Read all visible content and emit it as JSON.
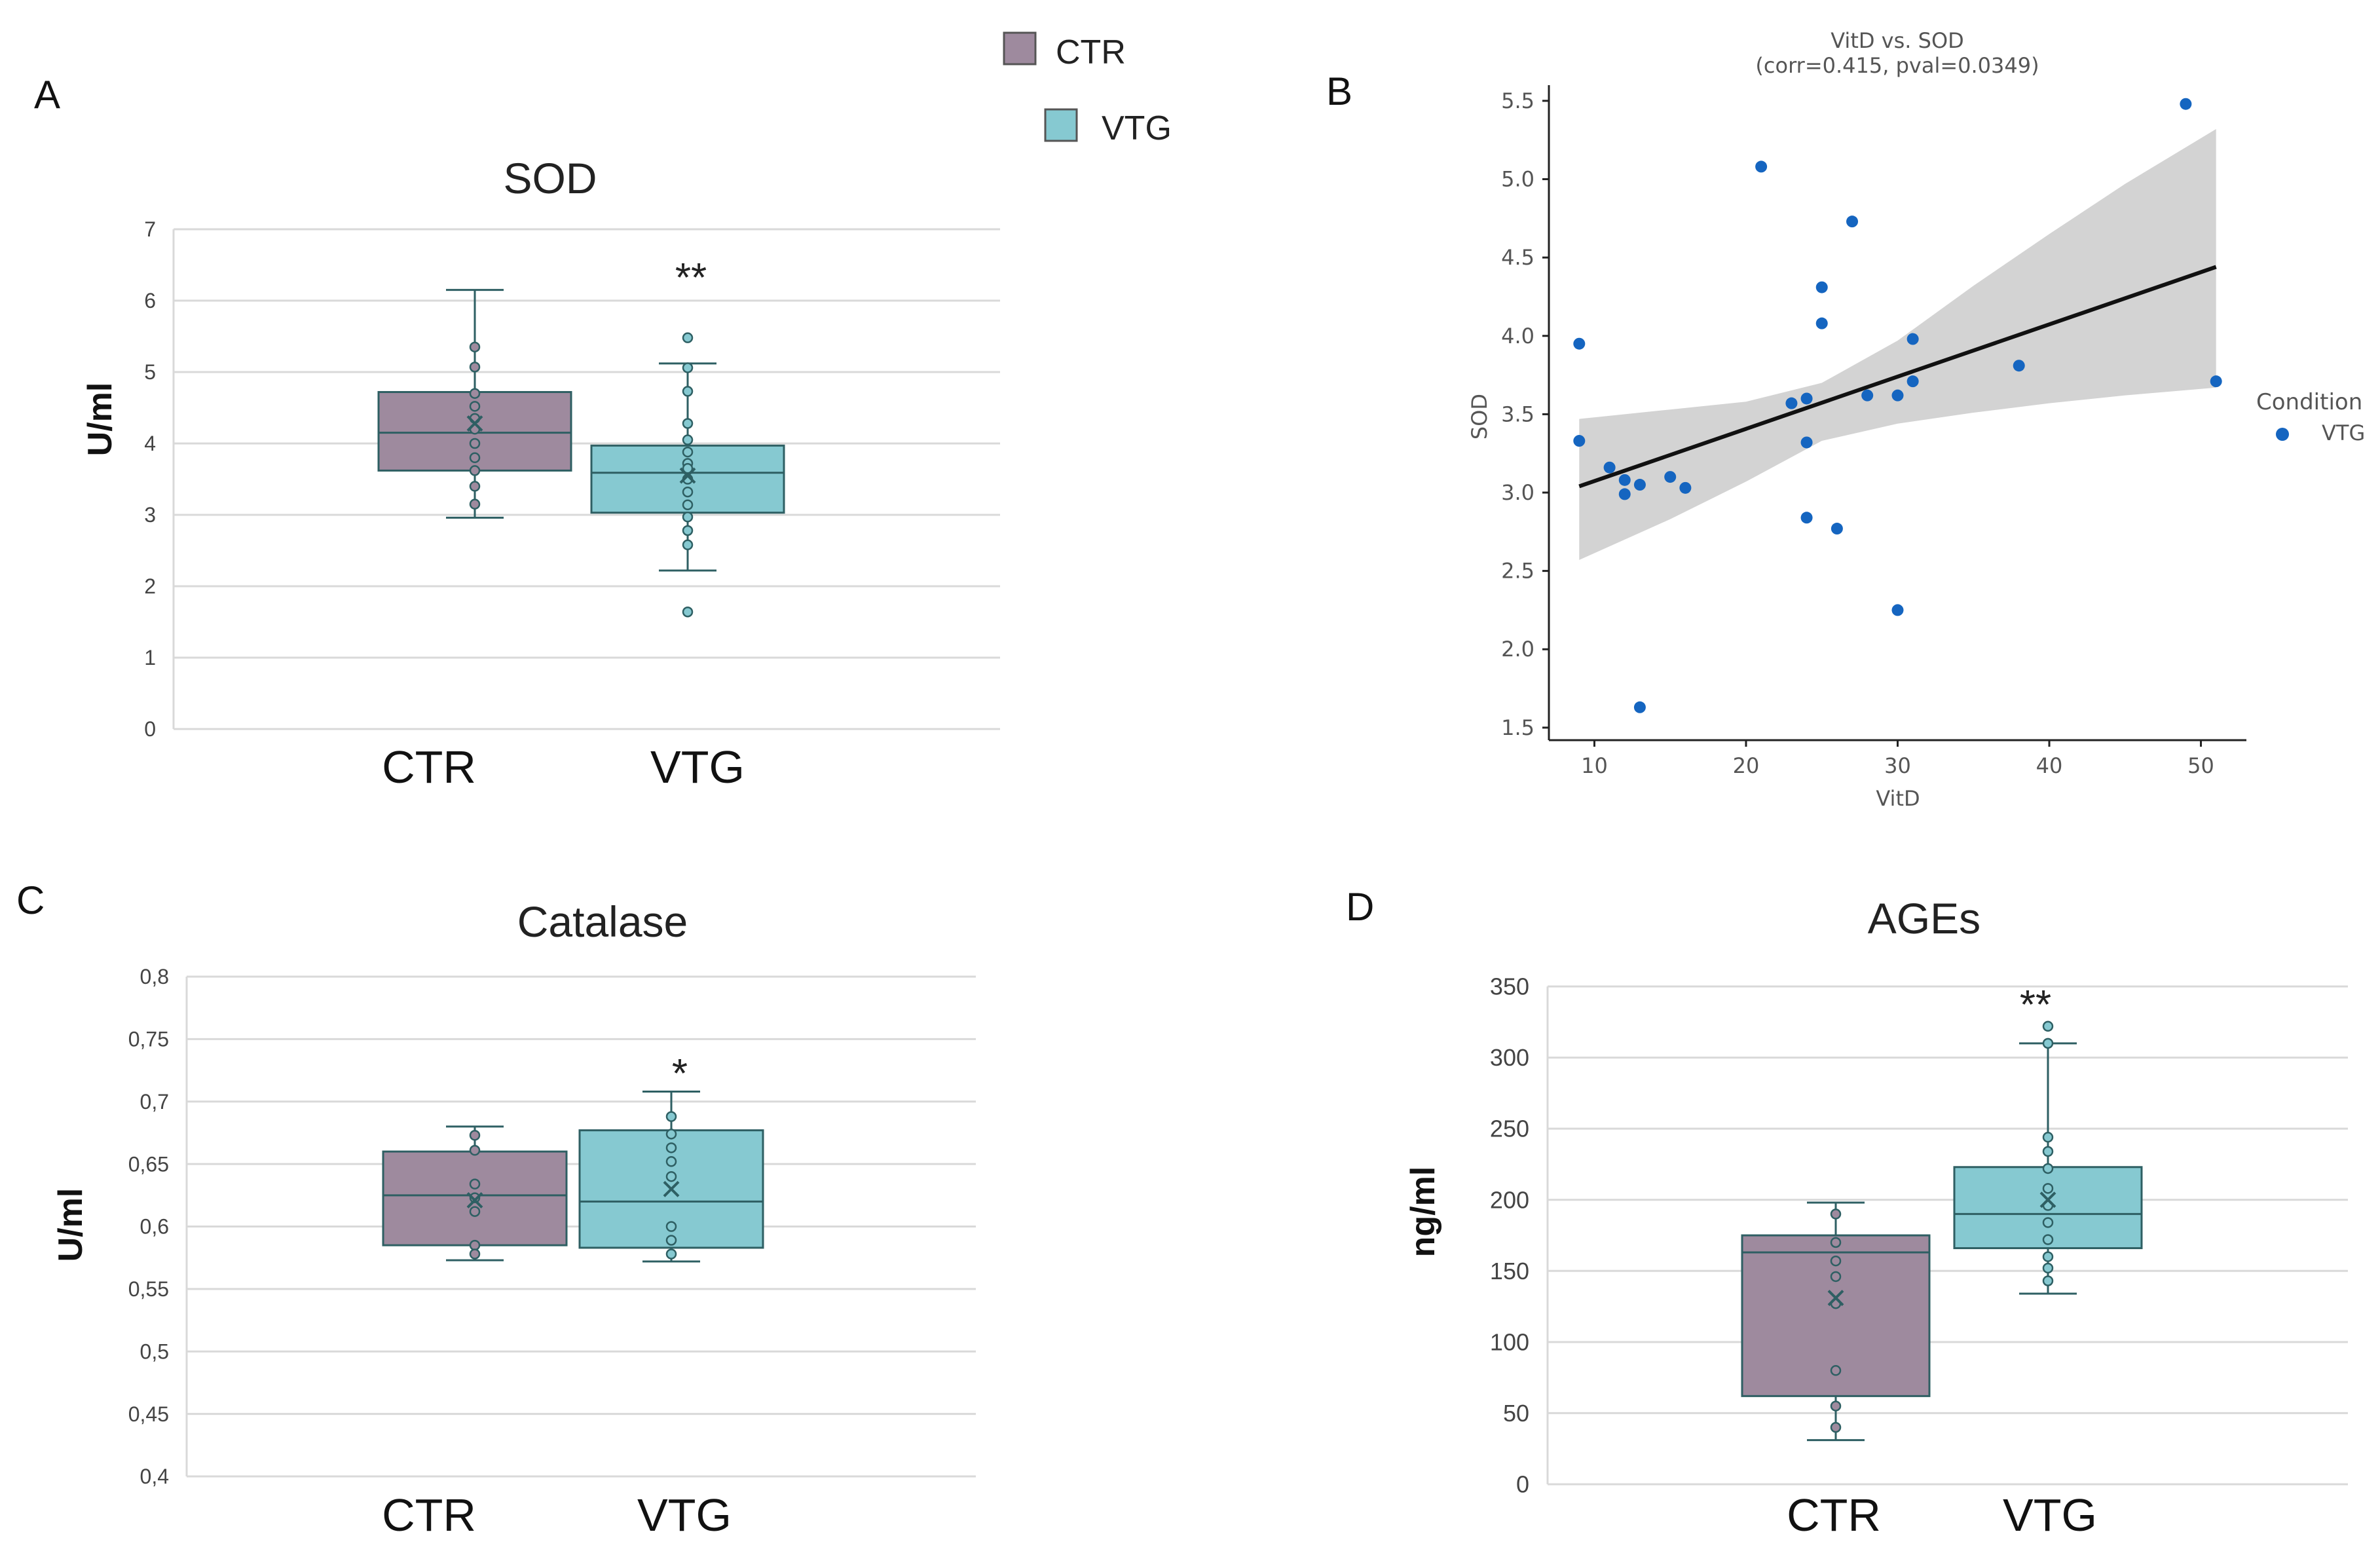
{
  "colors": {
    "ctr": "#9e8a9e",
    "vtg": "#86c9d1",
    "edge": "#2e5f63",
    "grid": "#d9d9d9",
    "scatter": "#1565c0",
    "band": "#d3d3d3"
  },
  "legend": {
    "items": [
      {
        "label": "CTR",
        "color": "#9e8a9e"
      },
      {
        "label": "VTG",
        "color": "#86c9d1"
      }
    ]
  },
  "chart_data": [
    {
      "id": "A",
      "panel": "A",
      "type": "box",
      "title": "SOD",
      "ylabel": "U/ml",
      "ylim": [
        0,
        7
      ],
      "yticks": [
        "0",
        "1",
        "2",
        "3",
        "4",
        "5",
        "6",
        "7"
      ],
      "ytick_values": [
        0,
        1,
        2,
        3,
        4,
        5,
        6,
        7
      ],
      "significance": "**",
      "groups": [
        {
          "name": "CTR",
          "q1": 3.62,
          "median": 4.15,
          "q3": 4.72,
          "whisker_low": 2.96,
          "whisker_high": 6.15,
          "mean": 4.28,
          "points": [
            5.35,
            5.07,
            4.7,
            4.52,
            4.35,
            4.2,
            4.0,
            3.8,
            3.62,
            3.4,
            3.15
          ]
        },
        {
          "name": "VTG",
          "q1": 3.03,
          "median": 3.59,
          "q3": 3.97,
          "whisker_low": 2.22,
          "whisker_high": 5.12,
          "mean": 3.55,
          "points": [
            5.48,
            5.06,
            4.73,
            4.28,
            4.05,
            3.88,
            3.72,
            3.65,
            3.5,
            3.32,
            3.14,
            2.97,
            2.78,
            2.58,
            1.64
          ]
        }
      ]
    },
    {
      "id": "B",
      "panel": "B",
      "type": "scatter",
      "title": "VitD vs. SOD",
      "subtitle": "(corr=0.415, pval=0.0349)",
      "xlabel": "VitD",
      "ylabel": "SOD",
      "xlim": [
        7,
        53
      ],
      "ylim": [
        1.42,
        5.6
      ],
      "xticks": [
        "10",
        "20",
        "30",
        "40",
        "50"
      ],
      "xtick_values": [
        10,
        20,
        30,
        40,
        50
      ],
      "yticks": [
        "1.5",
        "2.0",
        "2.5",
        "3.0",
        "3.5",
        "4.0",
        "4.5",
        "5.0",
        "5.5"
      ],
      "ytick_values": [
        1.5,
        2.0,
        2.5,
        3.0,
        3.5,
        4.0,
        4.5,
        5.0,
        5.5
      ],
      "legend_title": "Condition",
      "legend_label": "VTG",
      "fit": {
        "x0": 9,
        "y0": 3.04,
        "x1": 51,
        "y1": 4.44
      },
      "band_upper": [
        [
          9,
          3.47
        ],
        [
          15,
          3.53
        ],
        [
          20,
          3.58
        ],
        [
          25,
          3.7
        ],
        [
          30,
          3.97
        ],
        [
          35,
          4.32
        ],
        [
          40,
          4.65
        ],
        [
          45,
          4.97
        ],
        [
          51,
          5.32
        ]
      ],
      "band_lower": [
        [
          9,
          2.57
        ],
        [
          15,
          2.83
        ],
        [
          20,
          3.07
        ],
        [
          25,
          3.33
        ],
        [
          30,
          3.44
        ],
        [
          35,
          3.51
        ],
        [
          40,
          3.57
        ],
        [
          45,
          3.62
        ],
        [
          51,
          3.67
        ]
      ],
      "x": [
        9,
        9,
        11,
        12,
        12,
        13,
        13,
        15,
        16,
        21,
        23,
        24,
        24,
        24,
        25,
        25,
        26,
        27,
        28,
        30,
        30,
        31,
        31,
        38,
        49,
        51
      ],
      "y": [
        3.95,
        3.33,
        3.16,
        3.08,
        2.99,
        3.05,
        1.63,
        3.1,
        3.03,
        5.08,
        3.57,
        3.6,
        3.32,
        2.84,
        4.31,
        4.08,
        2.77,
        4.73,
        3.62,
        3.62,
        2.25,
        3.98,
        3.71,
        3.81,
        5.48,
        3.71
      ]
    },
    {
      "id": "C",
      "panel": "C",
      "type": "box",
      "title": "Catalase",
      "ylabel": "U/ml",
      "ylim": [
        0.4,
        0.8
      ],
      "yticks": [
        "0,4",
        "0,45",
        "0,5",
        "0,55",
        "0,6",
        "0,65",
        "0,7",
        "0,75",
        "0,8"
      ],
      "ytick_values": [
        0.4,
        0.45,
        0.5,
        0.55,
        0.6,
        0.65,
        0.7,
        0.75,
        0.8
      ],
      "significance": "*",
      "groups": [
        {
          "name": "CTR",
          "q1": 0.585,
          "median": 0.625,
          "q3": 0.66,
          "whisker_low": 0.573,
          "whisker_high": 0.68,
          "mean": 0.621,
          "points": [
            0.673,
            0.661,
            0.634,
            0.623,
            0.612,
            0.585,
            0.578
          ]
        },
        {
          "name": "VTG",
          "q1": 0.583,
          "median": 0.62,
          "q3": 0.677,
          "whisker_low": 0.572,
          "whisker_high": 0.708,
          "mean": 0.63,
          "points": [
            0.688,
            0.674,
            0.663,
            0.652,
            0.64,
            0.6,
            0.589,
            0.578
          ]
        }
      ]
    },
    {
      "id": "D",
      "panel": "D",
      "type": "box",
      "title": "AGEs",
      "ylabel": "ng/ml",
      "ylim": [
        0,
        350
      ],
      "yticks": [
        "0",
        "50",
        "100",
        "150",
        "200",
        "250",
        "300",
        "350"
      ],
      "ytick_values": [
        0,
        50,
        100,
        150,
        200,
        250,
        300,
        350
      ],
      "significance": "**",
      "groups": [
        {
          "name": "CTR",
          "q1": 62,
          "median": 163,
          "q3": 175,
          "whisker_low": 31,
          "whisker_high": 198,
          "mean": 131,
          "points": [
            190,
            170,
            157,
            146,
            127,
            80,
            55,
            40
          ]
        },
        {
          "name": "VTG",
          "q1": 166,
          "median": 190,
          "q3": 223,
          "whisker_low": 134,
          "whisker_high": 310,
          "mean": 200,
          "points": [
            322,
            310,
            244,
            234,
            222,
            208,
            196,
            184,
            172,
            160,
            152,
            143
          ]
        }
      ]
    }
  ]
}
